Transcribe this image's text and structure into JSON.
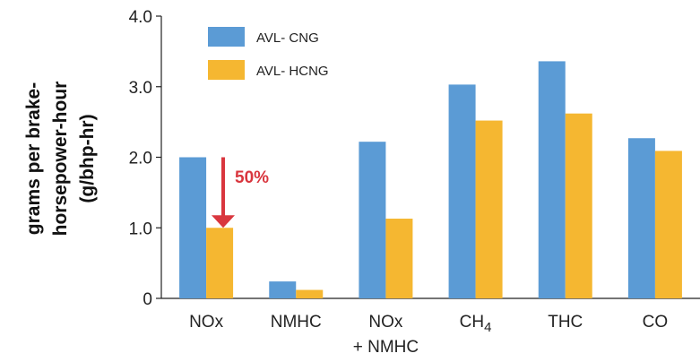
{
  "chart_data": {
    "type": "bar",
    "categories": [
      "NOx",
      "NMHC",
      "NOx\n+ NMHC",
      "CH4",
      "THC",
      "CO"
    ],
    "series": [
      {
        "name": "AVL- CNG",
        "color": "#5b9bd5",
        "values": [
          2.0,
          0.24,
          2.22,
          3.03,
          3.36,
          2.27
        ]
      },
      {
        "name": "AVL- HCNG",
        "color": "#f5b731",
        "values": [
          1.0,
          0.12,
          1.13,
          2.52,
          2.62,
          2.09
        ]
      }
    ],
    "ylabel_line1": "grams per brake-",
    "ylabel_line2": "horsepower-hour",
    "ylabel_line3": "(g/bhp-hr)",
    "ylim": [
      0,
      4.0
    ],
    "yticks": [
      "0",
      "1.0",
      "2.0",
      "3.0",
      "4.0"
    ],
    "grid": false,
    "legend_position": "top-left",
    "annotation": {
      "text": "50%",
      "color": "#d9363e",
      "category": "NOx",
      "from": 2.0,
      "to": 1.0
    }
  }
}
